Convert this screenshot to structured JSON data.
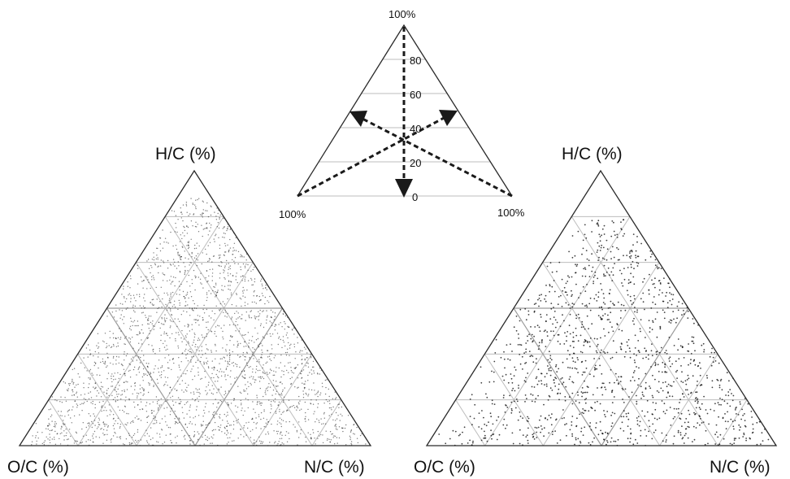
{
  "key": {
    "apex_label": "100%",
    "left_label": "100%",
    "right_label": "100%",
    "ticks": [
      "0",
      "20",
      "40",
      "60",
      "80"
    ]
  },
  "left_plot": {
    "top_label": "H/C (%)",
    "left_label": "O/C (%)",
    "right_label": "N/C (%)"
  },
  "right_plot": {
    "top_label": "H/C (%)",
    "left_label": "O/C (%)",
    "right_label": "N/C (%)"
  },
  "colors": {
    "frame": "#2a2a2a",
    "grid": "#bdbdbd",
    "points": "#111111"
  }
}
